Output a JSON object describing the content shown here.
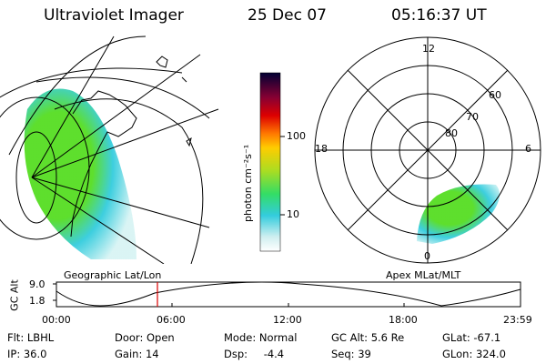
{
  "header": {
    "instrument": "Ultraviolet Imager",
    "date": "25 Dec 07",
    "time": "05:16:37 UT"
  },
  "colorbar": {
    "unit_label": "photon cm⁻²s⁻¹",
    "tick_100": "100",
    "tick_10": "10"
  },
  "polar_plot": {
    "labels": {
      "top": "12",
      "left": "18",
      "right": "6",
      "bottom": "0"
    },
    "lat_labels": [
      "60",
      "70",
      "80"
    ]
  },
  "panel_labels": {
    "geographic": "Geographic Lat/Lon",
    "apex": "Apex  MLat/MLT"
  },
  "altitude_plot": {
    "axis_title": "GC Alt",
    "y_ticks": [
      "9.0",
      "1.8"
    ],
    "x_ticks": [
      "00:00",
      "06:00",
      "12:00",
      "18:00",
      "23:59"
    ]
  },
  "info": {
    "filter_label": "Flt:",
    "filter_value": "LBHL",
    "ip_label": "IP:",
    "ip_value": "36.0",
    "door_label": "Door:",
    "door_value": "Open",
    "gain_label": "Gain:",
    "gain_value": "14",
    "mode_label": "Mode:",
    "mode_value": "Normal",
    "dsp_label": "Dsp:",
    "dsp_value": "-4.4",
    "gcalt_label": "GC Alt:",
    "gcalt_value": "5.6 Re",
    "seq_label": "Seq:",
    "seq_value": "39",
    "glat_label": "GLat:",
    "glat_value": "-67.1",
    "glon_label": "GLon:",
    "glon_value": "324.0"
  },
  "colors": {
    "aurora_green": "#55dd22",
    "aurora_cyan": "#33ccdd",
    "time_marker": "#dd0000"
  }
}
